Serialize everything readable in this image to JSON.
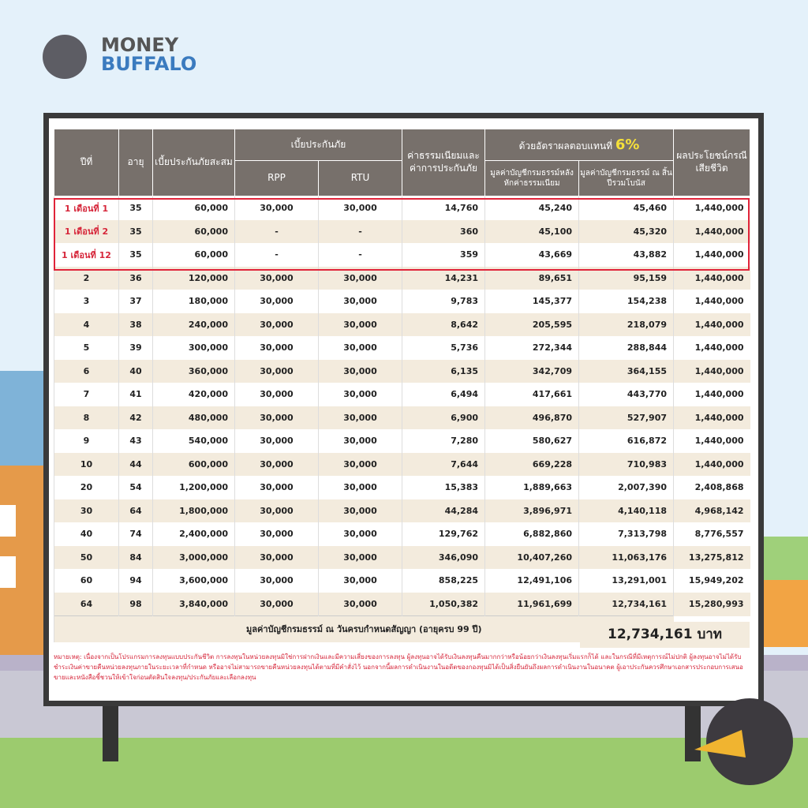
{
  "logo": {
    "line1": "MONEY",
    "line2": "BUFFALO"
  },
  "table": {
    "header": {
      "year": "ปีที่",
      "age": "อายุ",
      "cumulative_premium": "เบี้ยประกันภัยสะสม",
      "premium": "เบี้ยประกันภัย",
      "rpp": "RPP",
      "rtu": "RTU",
      "fees": "ค่าธรรมเนียมและค่าการประกันภัย",
      "return_prefix": "ด้วยอัตราผลตอบแทนที่",
      "return_rate": "6%",
      "value_after_fees": "มูลค่าบัญชีกรมธรรม์หลังหักค่าธรรมเนียม",
      "value_with_bonus": "มูลค่าบัญชีกรมธรรม์ ณ สิ้นปีรวมโบนัส",
      "death_benefit": "ผลประโยชน์กรณีเสียชีวิต"
    },
    "rows": [
      [
        "1 เดือนที่ 1",
        "35",
        "60,000",
        "30,000",
        "30,000",
        "14,760",
        "45,240",
        "45,460",
        "1,440,000"
      ],
      [
        "1 เดือนที่ 2",
        "35",
        "60,000",
        "-",
        "-",
        "360",
        "45,100",
        "45,320",
        "1,440,000"
      ],
      [
        "1 เดือนที่ 12",
        "35",
        "60,000",
        "-",
        "-",
        "359",
        "43,669",
        "43,882",
        "1,440,000"
      ],
      [
        "2",
        "36",
        "120,000",
        "30,000",
        "30,000",
        "14,231",
        "89,651",
        "95,159",
        "1,440,000"
      ],
      [
        "3",
        "37",
        "180,000",
        "30,000",
        "30,000",
        "9,783",
        "145,377",
        "154,238",
        "1,440,000"
      ],
      [
        "4",
        "38",
        "240,000",
        "30,000",
        "30,000",
        "8,642",
        "205,595",
        "218,079",
        "1,440,000"
      ],
      [
        "5",
        "39",
        "300,000",
        "30,000",
        "30,000",
        "5,736",
        "272,344",
        "288,844",
        "1,440,000"
      ],
      [
        "6",
        "40",
        "360,000",
        "30,000",
        "30,000",
        "6,135",
        "342,709",
        "364,155",
        "1,440,000"
      ],
      [
        "7",
        "41",
        "420,000",
        "30,000",
        "30,000",
        "6,494",
        "417,661",
        "443,770",
        "1,440,000"
      ],
      [
        "8",
        "42",
        "480,000",
        "30,000",
        "30,000",
        "6,900",
        "496,870",
        "527,907",
        "1,440,000"
      ],
      [
        "9",
        "43",
        "540,000",
        "30,000",
        "30,000",
        "7,280",
        "580,627",
        "616,872",
        "1,440,000"
      ],
      [
        "10",
        "44",
        "600,000",
        "30,000",
        "30,000",
        "7,644",
        "669,228",
        "710,983",
        "1,440,000"
      ],
      [
        "20",
        "54",
        "1,200,000",
        "30,000",
        "30,000",
        "15,383",
        "1,889,663",
        "2,007,390",
        "2,408,868"
      ],
      [
        "30",
        "64",
        "1,800,000",
        "30,000",
        "30,000",
        "44,284",
        "3,896,971",
        "4,140,118",
        "4,968,142"
      ],
      [
        "40",
        "74",
        "2,400,000",
        "30,000",
        "30,000",
        "129,762",
        "6,882,860",
        "7,313,798",
        "8,776,557"
      ],
      [
        "50",
        "84",
        "3,000,000",
        "30,000",
        "30,000",
        "346,090",
        "10,407,260",
        "11,063,176",
        "13,275,812"
      ],
      [
        "60",
        "94",
        "3,600,000",
        "30,000",
        "30,000",
        "858,225",
        "12,491,106",
        "13,291,001",
        "15,949,202"
      ],
      [
        "64",
        "98",
        "3,840,000",
        "30,000",
        "30,000",
        "1,050,382",
        "11,961,699",
        "12,734,161",
        "15,280,993"
      ]
    ],
    "footer": {
      "label": "มูลค่าบัญชีกรมธรรม์ ณ วันครบกำหนดสัญญา (อายุครบ 99 ปี)",
      "value": "12,734,161 บาท"
    }
  },
  "note": "หมายเหตุ: เนื่องจากเป็นโปรแกรมการลงทุนแบบประกันชีวิต การลงทุนในหน่วยลงทุนมิใช่การฝากเงินและมีความเสี่ยงของการลงทุน ผู้ลงทุนอาจได้รับเงินลงทุนคืนมากกว่าหรือน้อยกว่าเงินลงทุนเริ่มแรกก็ได้ และในกรณีที่มีเหตุการณ์ไม่ปกติ ผู้ลงทุนอาจไม่ได้รับชำระเงินค่าขายคืนหน่วยลงทุนภายในระยะเวลาที่กำหนด หรืออาจไม่สามารถขายคืนหน่วยลงทุนได้ตามที่มีคำสั่งไว้ นอกจากนี้ผลการดำเนินงานในอดีตของกองทุนมิได้เป็นสิ่งยืนยันถึงผลการดำเนินงานในอนาคต ผู้เอาประกันควรศึกษาเอกสารประกอบการเสนอขายและหนังสือชี้ชวนให้เข้าใจก่อนตัดสินใจลงทุน/ประกันภัยและเลือกลงทุน"
}
